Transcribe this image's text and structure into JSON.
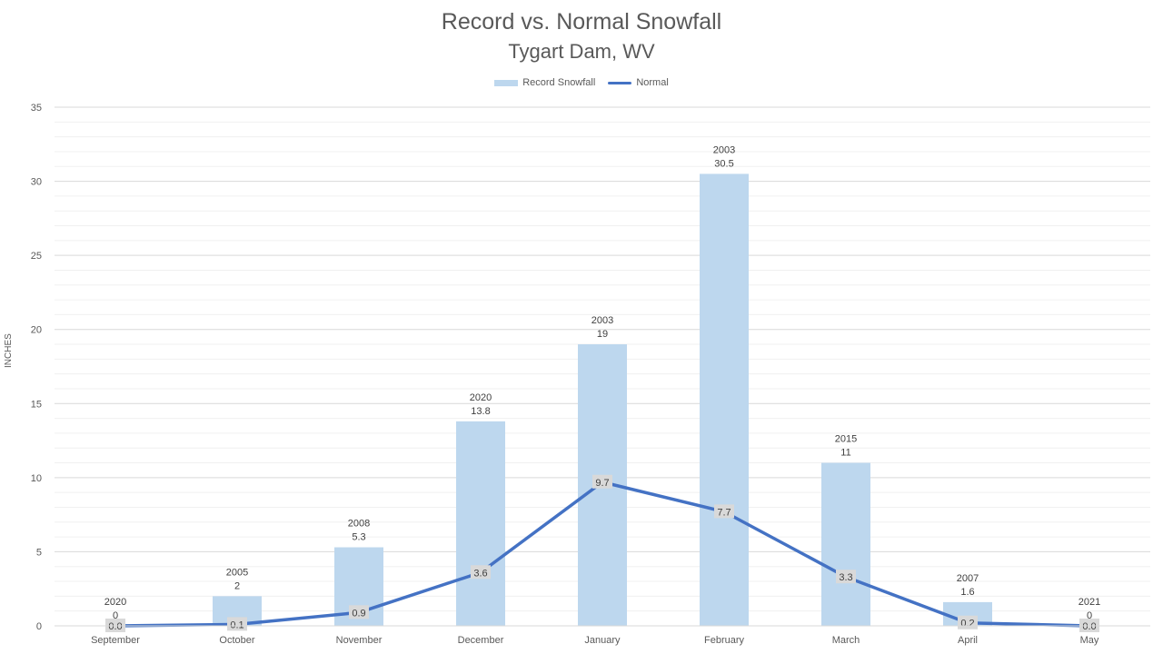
{
  "chart_data": {
    "type": "bar",
    "title": "Record vs. Normal Snowfall",
    "subtitle": "Tygart Dam, WV",
    "xlabel": "",
    "ylabel": "INCHES",
    "ylim": [
      0,
      35
    ],
    "yticks": [
      0,
      5,
      10,
      15,
      20,
      25,
      30,
      35
    ],
    "grid": true,
    "legend_position": "top",
    "categories": [
      "September",
      "October",
      "November",
      "December",
      "January",
      "February",
      "March",
      "April",
      "May"
    ],
    "series": [
      {
        "name": "Record Snowfall",
        "type": "bar",
        "color": "#bdd7ee",
        "values": [
          0,
          2,
          5.3,
          13.8,
          19,
          30.5,
          11,
          1.6,
          0
        ],
        "years": [
          "2020",
          "2005",
          "2008",
          "2020",
          "2003",
          "2003",
          "2015",
          "2007",
          "2021"
        ]
      },
      {
        "name": "Normal",
        "type": "line",
        "color": "#4472c4",
        "values": [
          0.0,
          0.1,
          0.9,
          3.6,
          9.7,
          7.7,
          3.3,
          0.2,
          0.0
        ],
        "labels": [
          "0.0",
          "0.1",
          "0.9",
          "3.6",
          "9.7",
          "7.7",
          "3.3",
          "0.2",
          "0.0"
        ]
      }
    ]
  }
}
